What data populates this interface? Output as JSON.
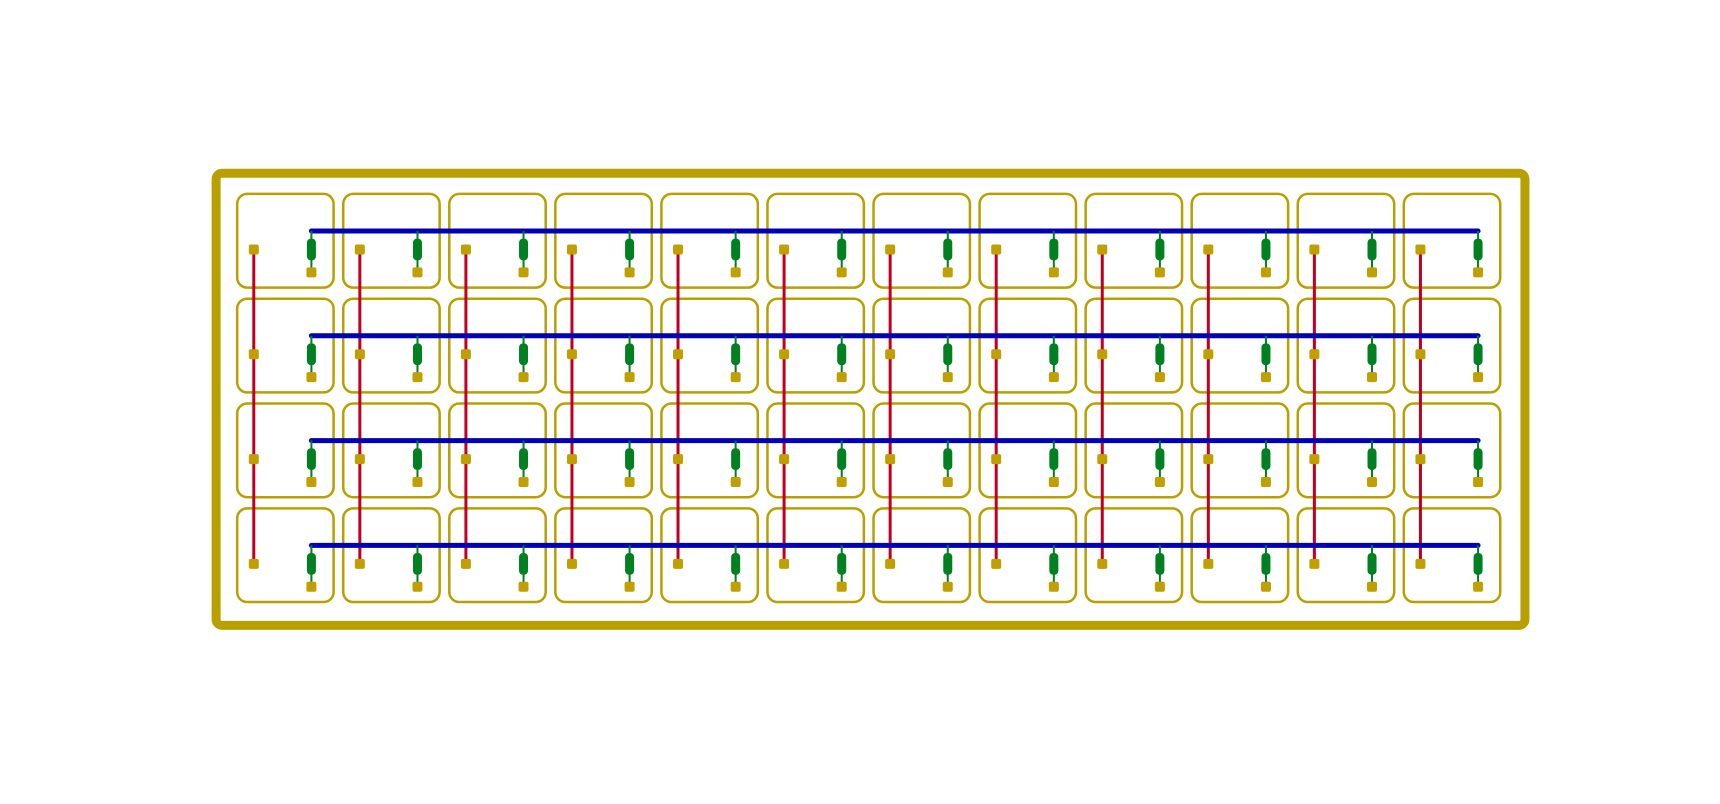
{
  "grid": {
    "rows": 4,
    "cols": 12
  },
  "colors": {
    "outline": "#b8a000",
    "pad": "#c0a000",
    "column_trace": "#c00020",
    "row_trace": "#0000b4",
    "diode": "#008020"
  }
}
